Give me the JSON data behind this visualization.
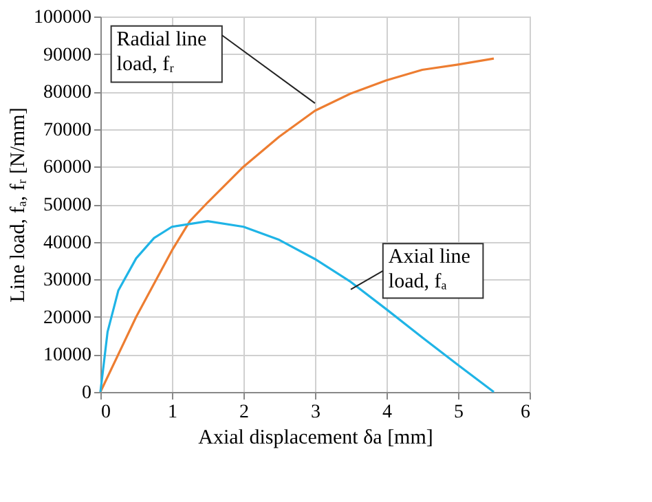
{
  "chart_data": {
    "type": "line",
    "xlabel": "Axial displacement δa [mm]",
    "ylabel": "Line load, fₐ, fᵣ [N/mm]",
    "xlim": [
      0,
      6
    ],
    "xticks": [
      0,
      1,
      2,
      3,
      4,
      5,
      6
    ],
    "ylim": [
      0,
      100000
    ],
    "yticks": [
      0,
      10000,
      20000,
      30000,
      40000,
      50000,
      60000,
      70000,
      80000,
      90000,
      100000
    ],
    "grid": true,
    "legend": false,
    "marker": "none",
    "line_style": "solid",
    "series": [
      {
        "name": "Radial line load, fᵣ",
        "color": "#ed7d31",
        "x": [
          0,
          0.5,
          1,
          1.25,
          1.5,
          2,
          2.5,
          3,
          3.5,
          4,
          4.5,
          5,
          5.5
        ],
        "values": [
          0,
          20000,
          37700,
          45500,
          50500,
          60000,
          68000,
          74900,
          79500,
          83000,
          85800,
          87200,
          88800
        ]
      },
      {
        "name": "Axial line load, fₐ",
        "color": "#1fb4e6",
        "x": [
          0,
          0.1,
          0.25,
          0.5,
          0.75,
          1,
          1.5,
          2,
          2.5,
          3,
          3.5,
          4,
          4.5,
          5,
          5.5
        ],
        "values": [
          0,
          16000,
          27000,
          35600,
          41000,
          44000,
          45500,
          44000,
          40500,
          35400,
          29300,
          22000,
          14500,
          7200,
          0
        ]
      }
    ]
  }
}
